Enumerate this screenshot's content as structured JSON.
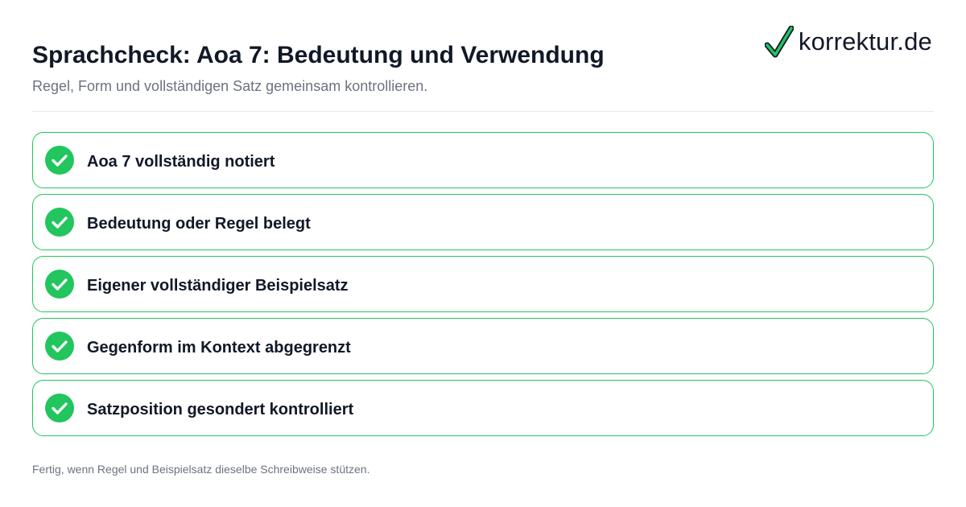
{
  "header": {
    "title": "Sprachcheck: Aoa 7: Bedeutung und Verwendung",
    "subtitle": "Regel, Form und vollständigen Satz gemeinsam kontrollieren."
  },
  "logo": {
    "text": "korrektur.de",
    "icon": "checkmark-icon",
    "check_color": "#22c55e"
  },
  "checklist": {
    "accent_color": "#22c55e",
    "items": [
      {
        "label": "Aoa 7 vollständig notiert",
        "checked": true,
        "icon": "check-circle-icon"
      },
      {
        "label": "Bedeutung oder Regel belegt",
        "checked": true,
        "icon": "check-circle-icon"
      },
      {
        "label": "Eigener vollständiger Beispielsatz",
        "checked": true,
        "icon": "check-circle-icon"
      },
      {
        "label": "Gegenform im Kontext abgegrenzt",
        "checked": true,
        "icon": "check-circle-icon"
      },
      {
        "label": "Satzposition gesondert kontrolliert",
        "checked": true,
        "icon": "check-circle-icon"
      }
    ]
  },
  "footer": {
    "note": "Fertig, wenn Regel und Beispielsatz dieselbe Schreibweise stützen."
  }
}
